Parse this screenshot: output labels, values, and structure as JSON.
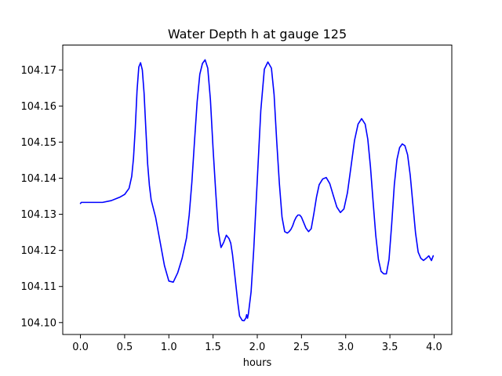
{
  "chart_data": {
    "type": "line",
    "title": "Water Depth h at gauge 125",
    "xlabel": "hours",
    "ylabel": "",
    "xlim": [
      -0.2,
      4.2
    ],
    "ylim": [
      104.0967,
      104.1769
    ],
    "xticks": [
      0.0,
      0.5,
      1.0,
      1.5,
      2.0,
      2.5,
      3.0,
      3.5,
      4.0
    ],
    "xtick_labels": [
      "0.0",
      "0.5",
      "1.0",
      "1.5",
      "2.0",
      "2.5",
      "3.0",
      "3.5",
      "4.0"
    ],
    "yticks": [
      104.1,
      104.11,
      104.12,
      104.13,
      104.14,
      104.15,
      104.16,
      104.17
    ],
    "ytick_labels": [
      "104.10",
      "104.11",
      "104.12",
      "104.13",
      "104.14",
      "104.15",
      "104.16",
      "104.17"
    ],
    "grid": false,
    "series": [
      {
        "color": "#0000ff",
        "x": [
          0.0,
          0.01,
          0.1,
          0.25,
          0.35,
          0.45,
          0.5,
          0.55,
          0.58,
          0.6,
          0.62,
          0.64,
          0.66,
          0.68,
          0.7,
          0.72,
          0.74,
          0.76,
          0.78,
          0.8,
          0.85,
          0.9,
          0.95,
          1.0,
          1.05,
          1.1,
          1.15,
          1.2,
          1.23,
          1.26,
          1.29,
          1.32,
          1.35,
          1.38,
          1.41,
          1.44,
          1.47,
          1.5,
          1.53,
          1.56,
          1.59,
          1.62,
          1.65,
          1.68,
          1.7,
          1.72,
          1.75,
          1.78,
          1.8,
          1.83,
          1.85,
          1.87,
          1.88,
          1.89,
          1.9,
          1.93,
          1.96,
          2.0,
          2.04,
          2.08,
          2.12,
          2.16,
          2.19,
          2.22,
          2.25,
          2.28,
          2.31,
          2.34,
          2.36,
          2.38,
          2.4,
          2.42,
          2.44,
          2.46,
          2.48,
          2.5,
          2.52,
          2.55,
          2.58,
          2.61,
          2.64,
          2.67,
          2.7,
          2.74,
          2.78,
          2.82,
          2.86,
          2.9,
          2.94,
          2.98,
          3.02,
          3.06,
          3.1,
          3.14,
          3.18,
          3.22,
          3.25,
          3.28,
          3.31,
          3.34,
          3.37,
          3.4,
          3.43,
          3.46,
          3.49,
          3.52,
          3.55,
          3.58,
          3.61,
          3.64,
          3.67,
          3.7,
          3.73,
          3.76,
          3.79,
          3.82,
          3.85,
          3.88,
          3.91,
          3.94,
          3.97,
          3.99
        ],
        "y": [
          104.133,
          104.1333,
          104.1333,
          104.1333,
          104.1338,
          104.1348,
          104.1355,
          104.1372,
          104.1405,
          104.1455,
          104.1538,
          104.1642,
          104.1708,
          104.172,
          104.17,
          104.1635,
          104.1535,
          104.144,
          104.138,
          104.134,
          104.1292,
          104.1225,
          104.1158,
          104.1115,
          104.1112,
          104.1138,
          104.1178,
          104.1235,
          104.1298,
          104.1388,
          104.1502,
          104.1612,
          104.1688,
          104.1718,
          104.1728,
          104.1705,
          104.1618,
          104.1482,
          104.1362,
          104.1252,
          104.1208,
          104.1222,
          104.1242,
          104.1233,
          104.122,
          104.1188,
          104.1122,
          104.1055,
          104.1018,
          104.1006,
          104.1005,
          104.1012,
          104.1022,
          104.1012,
          104.1025,
          104.1085,
          104.1202,
          104.1395,
          104.1588,
          104.1702,
          104.1722,
          104.1705,
          104.1632,
          104.1502,
          104.1385,
          104.1292,
          104.1252,
          104.1248,
          104.1252,
          104.1258,
          104.1268,
          104.1282,
          104.1292,
          104.1298,
          104.1298,
          104.1292,
          104.128,
          104.1262,
          104.1252,
          104.126,
          104.1302,
          104.1348,
          104.1382,
          104.1398,
          104.1402,
          104.1385,
          104.1352,
          104.132,
          104.1305,
          104.1315,
          104.136,
          104.1432,
          104.1505,
          104.155,
          104.1565,
          104.155,
          104.1508,
          104.1432,
          104.1335,
          104.1242,
          104.1175,
          104.1142,
          104.1135,
          104.1135,
          104.1175,
          104.1272,
          104.1382,
          104.1452,
          104.1485,
          104.1495,
          104.149,
          104.1465,
          104.1408,
          104.1328,
          104.1248,
          104.1195,
          104.1178,
          104.1172,
          104.1178,
          104.1185,
          104.1172,
          104.1185
        ]
      }
    ]
  }
}
